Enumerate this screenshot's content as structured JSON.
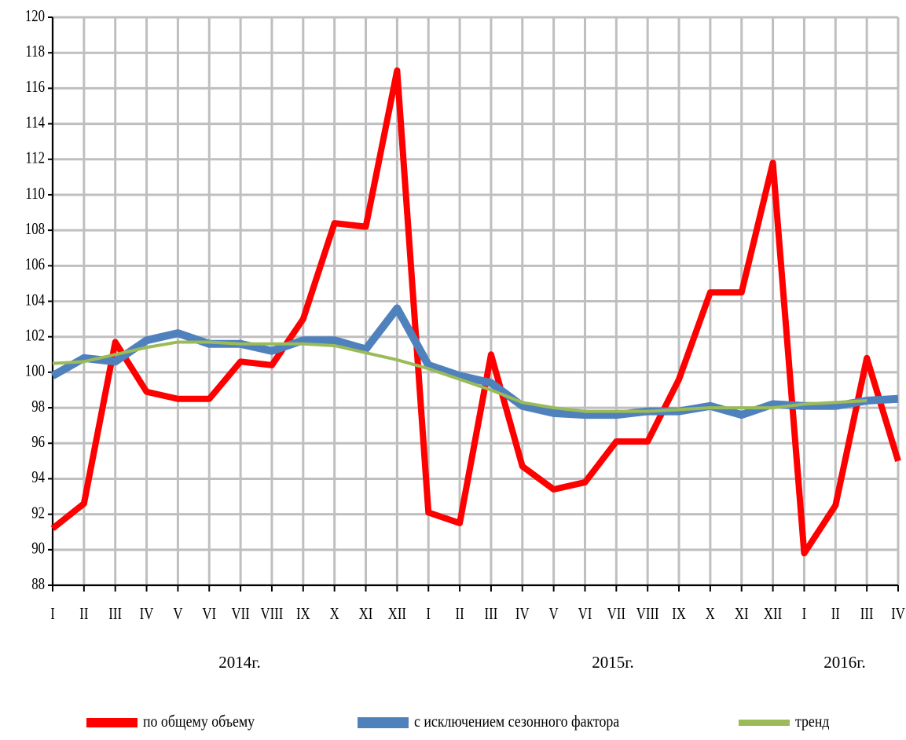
{
  "chart_data": {
    "type": "line",
    "categories": [
      "I",
      "II",
      "III",
      "IV",
      "V",
      "VI",
      "VII",
      "VIII",
      "IX",
      "X",
      "XI",
      "XII",
      "I",
      "II",
      "III",
      "IV",
      "V",
      "VI",
      "VII",
      "VIII",
      "IX",
      "X",
      "XI",
      "XII",
      "I",
      "II",
      "III",
      "IV"
    ],
    "x_groups": [
      "2014г.",
      "2015г.",
      "2016г."
    ],
    "series": [
      {
        "name": "по общему объему",
        "color": "#ff0000",
        "width": 8,
        "values": [
          91.2,
          92.6,
          101.7,
          98.9,
          98.5,
          98.5,
          100.6,
          100.4,
          103,
          108.4,
          108.2,
          117,
          92.1,
          91.5,
          101,
          94.7,
          93.4,
          93.8,
          96.1,
          96.1,
          99.6,
          104.5,
          104.5,
          111.8,
          89.8,
          92.5,
          100.8,
          95
        ]
      },
      {
        "name": "с исключением сезонного фактора",
        "color": "#4f81bd",
        "width": 10,
        "values": [
          99.8,
          100.8,
          100.6,
          101.8,
          102.2,
          101.6,
          101.6,
          101.2,
          101.8,
          101.8,
          101.3,
          103.6,
          100.4,
          99.8,
          99.4,
          98.1,
          97.7,
          97.6,
          97.6,
          97.8,
          97.8,
          98.1,
          97.6,
          98.2,
          98.1,
          98.1,
          98.4,
          98.5
        ]
      },
      {
        "name": "тренд",
        "color": "#9bbb59",
        "width": 4,
        "values": [
          100.5,
          100.6,
          101,
          101.4,
          101.7,
          101.7,
          101.6,
          101.6,
          101.6,
          101.5,
          101.1,
          100.7,
          100.2,
          99.6,
          99.0,
          98.3,
          98.0,
          97.8,
          97.8,
          97.8,
          97.9,
          98.0,
          98.0,
          98.0,
          98.2,
          98.3,
          98.4,
          null
        ]
      }
    ],
    "ylim": [
      88,
      120
    ],
    "yticks": [
      88,
      90,
      92,
      94,
      96,
      98,
      100,
      102,
      104,
      106,
      108,
      110,
      112,
      114,
      116,
      118,
      120
    ],
    "grid": true,
    "legend": "bottom"
  }
}
